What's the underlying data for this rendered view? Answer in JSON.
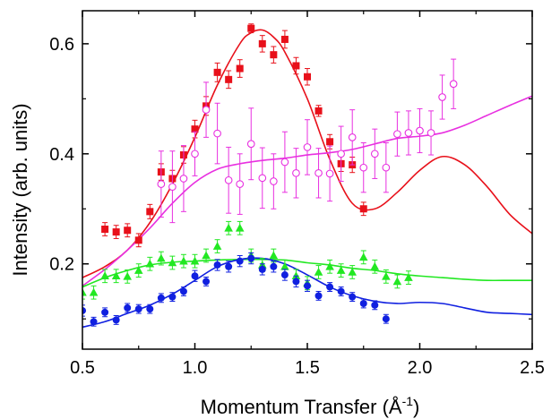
{
  "chart_data": {
    "type": "scatter",
    "title": "",
    "xlabel": "Momentum Transfer (Å",
    "xlabel_sup": "-1",
    "xlabel_suffix": ")",
    "ylabel": "Intensity (arb. units)",
    "xlim": [
      0.5,
      2.5
    ],
    "ylim": [
      0.045,
      0.66
    ],
    "x_ticks": [
      0.5,
      1.0,
      1.5,
      2.0,
      2.5
    ],
    "x_tick_labels": [
      "0.5",
      "1.0",
      "1.5",
      "2.0",
      "2.5"
    ],
    "y_ticks": [
      0.2,
      0.4,
      0.6
    ],
    "y_tick_labels": [
      "0.2",
      "0.4",
      "0.6"
    ],
    "grid": false,
    "legend": "none",
    "series": [
      {
        "marker": "square",
        "color": "#e8101a",
        "points": [
          [
            0.6,
            0.263,
            0.012
          ],
          [
            0.65,
            0.258,
            0.012
          ],
          [
            0.7,
            0.261,
            0.012
          ],
          [
            0.75,
            0.243,
            0.012
          ],
          [
            0.8,
            0.295,
            0.013
          ],
          [
            0.85,
            0.367,
            0.015
          ],
          [
            0.9,
            0.355,
            0.015
          ],
          [
            0.95,
            0.398,
            0.015
          ],
          [
            1.0,
            0.445,
            0.016
          ],
          [
            1.05,
            0.487,
            0.017
          ],
          [
            1.1,
            0.548,
            0.017
          ],
          [
            1.15,
            0.535,
            0.016
          ],
          [
            1.2,
            0.555,
            0.016
          ],
          [
            1.25,
            0.628,
            0.008
          ],
          [
            1.3,
            0.6,
            0.015
          ],
          [
            1.35,
            0.58,
            0.015
          ],
          [
            1.4,
            0.608,
            0.016
          ],
          [
            1.45,
            0.56,
            0.015
          ],
          [
            1.5,
            0.54,
            0.015
          ],
          [
            1.55,
            0.478,
            0.01
          ],
          [
            1.6,
            0.422,
            0.013
          ],
          [
            1.65,
            0.382,
            0.014
          ],
          [
            1.7,
            0.38,
            0.014
          ],
          [
            1.75,
            0.3,
            0.012
          ]
        ]
      },
      {
        "marker": "open-circle",
        "color": "#e830e0",
        "points": [
          [
            0.85,
            0.345,
            0.06
          ],
          [
            0.9,
            0.34,
            0.065
          ],
          [
            0.95,
            0.355,
            0.06
          ],
          [
            1.0,
            0.4,
            0.04
          ],
          [
            1.05,
            0.48,
            0.05
          ],
          [
            1.1,
            0.437,
            0.055
          ],
          [
            1.15,
            0.352,
            0.06
          ],
          [
            1.2,
            0.345,
            0.055
          ],
          [
            1.25,
            0.418,
            0.065
          ],
          [
            1.3,
            0.356,
            0.055
          ],
          [
            1.35,
            0.35,
            0.05
          ],
          [
            1.4,
            0.385,
            0.055
          ],
          [
            1.45,
            0.365,
            0.045
          ],
          [
            1.5,
            0.412,
            0.05
          ],
          [
            1.55,
            0.365,
            0.045
          ],
          [
            1.6,
            0.364,
            0.05
          ],
          [
            1.65,
            0.4,
            0.05
          ],
          [
            1.7,
            0.43,
            0.05
          ],
          [
            1.75,
            0.375,
            0.045
          ],
          [
            1.8,
            0.4,
            0.045
          ],
          [
            1.85,
            0.375,
            0.045
          ],
          [
            1.9,
            0.436,
            0.04
          ],
          [
            1.95,
            0.438,
            0.04
          ],
          [
            2.0,
            0.442,
            0.04
          ],
          [
            2.05,
            0.438,
            0.04
          ],
          [
            2.1,
            0.503,
            0.04
          ],
          [
            2.15,
            0.527,
            0.045
          ]
        ]
      },
      {
        "marker": "triangle",
        "color": "#22e822",
        "points": [
          [
            0.5,
            0.148,
            0.012
          ],
          [
            0.55,
            0.148,
            0.012
          ],
          [
            0.6,
            0.178,
            0.012
          ],
          [
            0.65,
            0.178,
            0.012
          ],
          [
            0.7,
            0.177,
            0.012
          ],
          [
            0.75,
            0.188,
            0.012
          ],
          [
            0.8,
            0.2,
            0.012
          ],
          [
            0.85,
            0.21,
            0.012
          ],
          [
            0.9,
            0.202,
            0.012
          ],
          [
            0.95,
            0.205,
            0.012
          ],
          [
            1.0,
            0.205,
            0.012
          ],
          [
            1.05,
            0.215,
            0.012
          ],
          [
            1.1,
            0.232,
            0.012
          ],
          [
            1.15,
            0.265,
            0.012
          ],
          [
            1.2,
            0.265,
            0.012
          ],
          [
            1.25,
            0.215,
            0.012
          ],
          [
            1.3,
            0.198,
            0.012
          ],
          [
            1.35,
            0.215,
            0.012
          ],
          [
            1.4,
            0.195,
            0.012
          ],
          [
            1.45,
            0.178,
            0.012
          ],
          [
            1.5,
            0.165,
            0.012
          ],
          [
            1.55,
            0.185,
            0.012
          ],
          [
            1.6,
            0.195,
            0.012
          ],
          [
            1.65,
            0.188,
            0.012
          ],
          [
            1.7,
            0.185,
            0.012
          ],
          [
            1.75,
            0.212,
            0.012
          ],
          [
            1.8,
            0.195,
            0.012
          ],
          [
            1.85,
            0.177,
            0.012
          ],
          [
            1.9,
            0.168,
            0.012
          ],
          [
            1.95,
            0.175,
            0.012
          ]
        ]
      },
      {
        "marker": "circle",
        "color": "#1020e0",
        "points": [
          [
            0.5,
            0.115,
            0.01
          ],
          [
            0.55,
            0.095,
            0.008
          ],
          [
            0.6,
            0.112,
            0.008
          ],
          [
            0.65,
            0.098,
            0.008
          ],
          [
            0.7,
            0.12,
            0.008
          ],
          [
            0.75,
            0.118,
            0.008
          ],
          [
            0.8,
            0.118,
            0.008
          ],
          [
            0.85,
            0.138,
            0.008
          ],
          [
            0.9,
            0.14,
            0.008
          ],
          [
            0.95,
            0.15,
            0.008
          ],
          [
            1.0,
            0.178,
            0.01
          ],
          [
            1.05,
            0.168,
            0.008
          ],
          [
            1.1,
            0.198,
            0.01
          ],
          [
            1.15,
            0.195,
            0.01
          ],
          [
            1.2,
            0.205,
            0.01
          ],
          [
            1.25,
            0.21,
            0.01
          ],
          [
            1.3,
            0.19,
            0.01
          ],
          [
            1.35,
            0.195,
            0.01
          ],
          [
            1.4,
            0.18,
            0.01
          ],
          [
            1.45,
            0.168,
            0.01
          ],
          [
            1.5,
            0.16,
            0.01
          ],
          [
            1.55,
            0.142,
            0.008
          ],
          [
            1.6,
            0.158,
            0.008
          ],
          [
            1.65,
            0.15,
            0.008
          ],
          [
            1.7,
            0.14,
            0.008
          ],
          [
            1.75,
            0.128,
            0.008
          ],
          [
            1.8,
            0.125,
            0.008
          ],
          [
            1.85,
            0.1,
            0.008
          ]
        ]
      }
    ],
    "fits": [
      {
        "color": "#e8101a",
        "x": [
          0.5,
          0.6,
          0.7,
          0.8,
          0.9,
          1.0,
          1.1,
          1.2,
          1.25,
          1.3,
          1.35,
          1.4,
          1.5,
          1.6,
          1.7,
          1.8,
          1.9,
          2.0,
          2.1,
          2.2,
          2.3,
          2.4,
          2.5
        ],
        "y": [
          0.175,
          0.195,
          0.225,
          0.275,
          0.345,
          0.43,
          0.525,
          0.6,
          0.62,
          0.625,
          0.612,
          0.585,
          0.5,
          0.39,
          0.31,
          0.3,
          0.33,
          0.37,
          0.395,
          0.38,
          0.34,
          0.29,
          0.255
        ]
      },
      {
        "color": "#e830e0",
        "x": [
          0.5,
          0.6,
          0.7,
          0.8,
          0.9,
          1.0,
          1.1,
          1.2,
          1.3,
          1.4,
          1.5,
          1.6,
          1.7,
          1.8,
          1.9,
          2.0,
          2.1,
          2.2,
          2.3,
          2.4,
          2.5
        ],
        "y": [
          0.16,
          0.19,
          0.225,
          0.265,
          0.31,
          0.348,
          0.372,
          0.382,
          0.388,
          0.392,
          0.398,
          0.402,
          0.408,
          0.418,
          0.428,
          0.432,
          0.438,
          0.452,
          0.47,
          0.488,
          0.505
        ]
      },
      {
        "color": "#22e822",
        "x": [
          0.5,
          0.6,
          0.7,
          0.8,
          0.9,
          1.0,
          1.1,
          1.2,
          1.3,
          1.4,
          1.5,
          1.6,
          1.7,
          1.8,
          1.9,
          2.0,
          2.1,
          2.2,
          2.3,
          2.4,
          2.5
        ],
        "y": [
          0.158,
          0.175,
          0.188,
          0.198,
          0.203,
          0.205,
          0.207,
          0.208,
          0.208,
          0.207,
          0.202,
          0.198,
          0.192,
          0.188,
          0.182,
          0.178,
          0.175,
          0.172,
          0.17,
          0.17,
          0.17
        ]
      },
      {
        "color": "#1020e0",
        "x": [
          0.5,
          0.6,
          0.7,
          0.8,
          0.9,
          1.0,
          1.1,
          1.2,
          1.3,
          1.4,
          1.5,
          1.6,
          1.7,
          1.8,
          1.9,
          2.0,
          2.1,
          2.2,
          2.3,
          2.4,
          2.5
        ],
        "y": [
          0.085,
          0.095,
          0.11,
          0.125,
          0.145,
          0.17,
          0.195,
          0.208,
          0.21,
          0.2,
          0.18,
          0.158,
          0.142,
          0.132,
          0.128,
          0.13,
          0.128,
          0.12,
          0.112,
          0.11,
          0.108
        ]
      }
    ]
  }
}
